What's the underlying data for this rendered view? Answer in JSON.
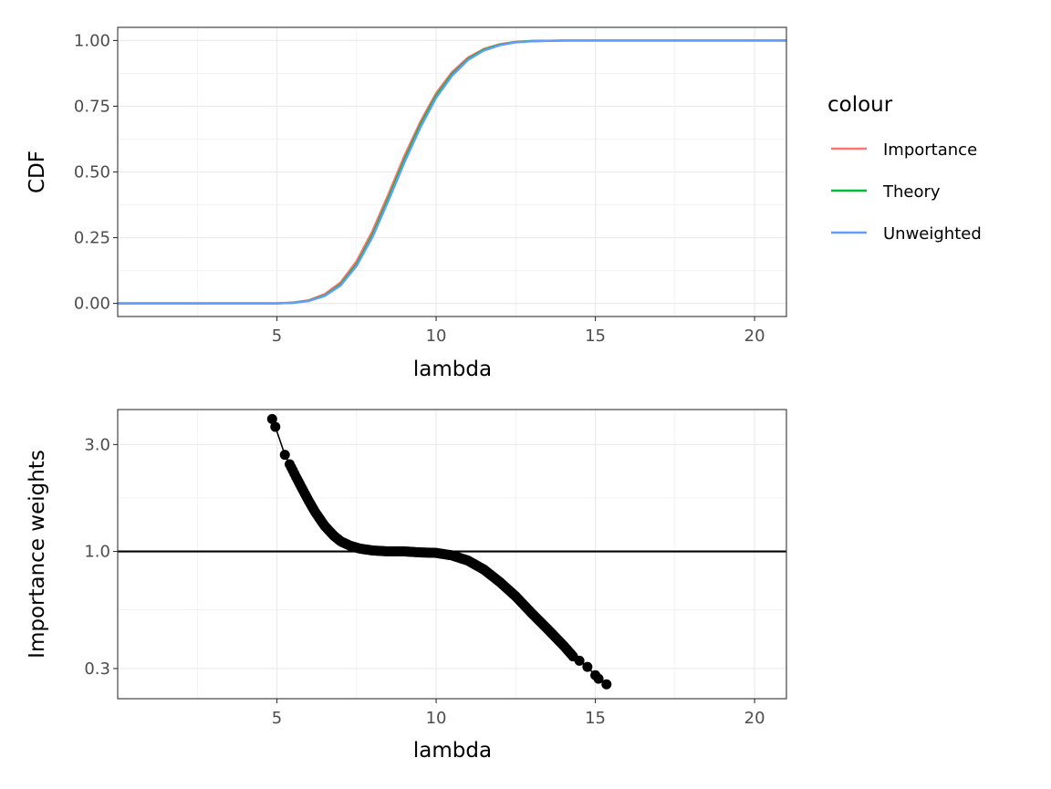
{
  "chart_data": [
    {
      "type": "line",
      "xlabel": "lambda",
      "ylabel": "CDF",
      "xlim": [
        0,
        21
      ],
      "ylim": [
        -0.05,
        1.05
      ],
      "x_ticks": [
        5,
        10,
        15,
        20
      ],
      "x_tick_labels": [
        "5",
        "10",
        "15",
        "20"
      ],
      "y_ticks": [
        0,
        0.25,
        0.5,
        0.75,
        1.0
      ],
      "y_tick_labels": [
        "0.00",
        "0.25",
        "0.50",
        "0.75",
        "1.00"
      ],
      "grid": true,
      "legend": {
        "title": "colour",
        "position": "right",
        "entries": [
          {
            "label": "Importance",
            "color": "#F8766D"
          },
          {
            "label": "Theory",
            "color": "#00BA38"
          },
          {
            "label": "Unweighted",
            "color": "#619CFF"
          }
        ]
      },
      "series": [
        {
          "name": "Importance",
          "color": "#F8766D",
          "x": [
            0,
            5,
            5.5,
            6,
            6.5,
            7,
            7.5,
            8,
            8.5,
            9,
            9.5,
            10,
            10.5,
            11,
            11.5,
            12,
            12.5,
            13,
            14,
            21
          ],
          "y": [
            0,
            0,
            0.003,
            0.012,
            0.035,
            0.08,
            0.16,
            0.275,
            0.415,
            0.56,
            0.69,
            0.8,
            0.88,
            0.935,
            0.968,
            0.986,
            0.995,
            0.998,
            1.0,
            1.0
          ]
        },
        {
          "name": "Theory",
          "color": "#00BA38",
          "x": [
            0,
            5,
            5.5,
            6,
            6.5,
            7,
            7.5,
            8,
            8.5,
            9,
            9.5,
            10,
            10.5,
            11,
            11.5,
            12,
            12.5,
            13,
            14,
            21
          ],
          "y": [
            0,
            0,
            0.002,
            0.01,
            0.03,
            0.072,
            0.148,
            0.26,
            0.4,
            0.545,
            0.678,
            0.79,
            0.872,
            0.93,
            0.965,
            0.984,
            0.994,
            0.998,
            1.0,
            1.0
          ]
        },
        {
          "name": "Unweighted",
          "color": "#619CFF",
          "x": [
            0,
            5,
            5.5,
            6,
            6.5,
            7,
            7.5,
            8,
            8.5,
            9,
            9.5,
            10,
            10.5,
            11,
            11.5,
            12,
            12.5,
            13,
            14,
            21
          ],
          "y": [
            0,
            0,
            0.002,
            0.009,
            0.028,
            0.068,
            0.142,
            0.252,
            0.39,
            0.535,
            0.668,
            0.782,
            0.866,
            0.926,
            0.962,
            0.982,
            0.993,
            0.997,
            1.0,
            1.0
          ]
        }
      ]
    },
    {
      "type": "scatter",
      "xlabel": "lambda",
      "ylabel": "Importance weights",
      "y_scale": "log",
      "xlim": [
        0,
        21
      ],
      "ylim": [
        0.22,
        4.3
      ],
      "x_ticks": [
        5,
        10,
        15,
        20
      ],
      "x_tick_labels": [
        "5",
        "10",
        "15",
        "20"
      ],
      "y_ticks": [
        0.3,
        1.0,
        3.0
      ],
      "y_tick_labels": [
        "0.3",
        "1.0",
        "3.0"
      ],
      "grid": true,
      "hline": 1.0,
      "series": [
        {
          "name": "",
          "x": [
            4.85,
            4.95,
            5.25,
            5.4,
            5.5,
            5.6,
            5.8,
            6.0,
            6.2,
            6.5,
            6.8,
            7.0,
            7.3,
            7.6,
            8.0,
            8.5,
            9.0,
            9.5,
            10.0,
            10.5,
            11.0,
            11.5,
            12.0,
            12.5,
            13.0,
            13.5,
            14.0,
            14.3,
            14.5,
            14.75,
            15.0,
            15.1,
            15.35
          ],
          "y": [
            3.9,
            3.6,
            2.7,
            2.45,
            2.3,
            2.15,
            1.9,
            1.68,
            1.5,
            1.3,
            1.17,
            1.11,
            1.06,
            1.03,
            1.01,
            1.0,
            1.0,
            0.99,
            0.985,
            0.96,
            0.91,
            0.83,
            0.73,
            0.63,
            0.53,
            0.45,
            0.38,
            0.34,
            0.325,
            0.305,
            0.28,
            0.27,
            0.255
          ]
        }
      ]
    }
  ]
}
